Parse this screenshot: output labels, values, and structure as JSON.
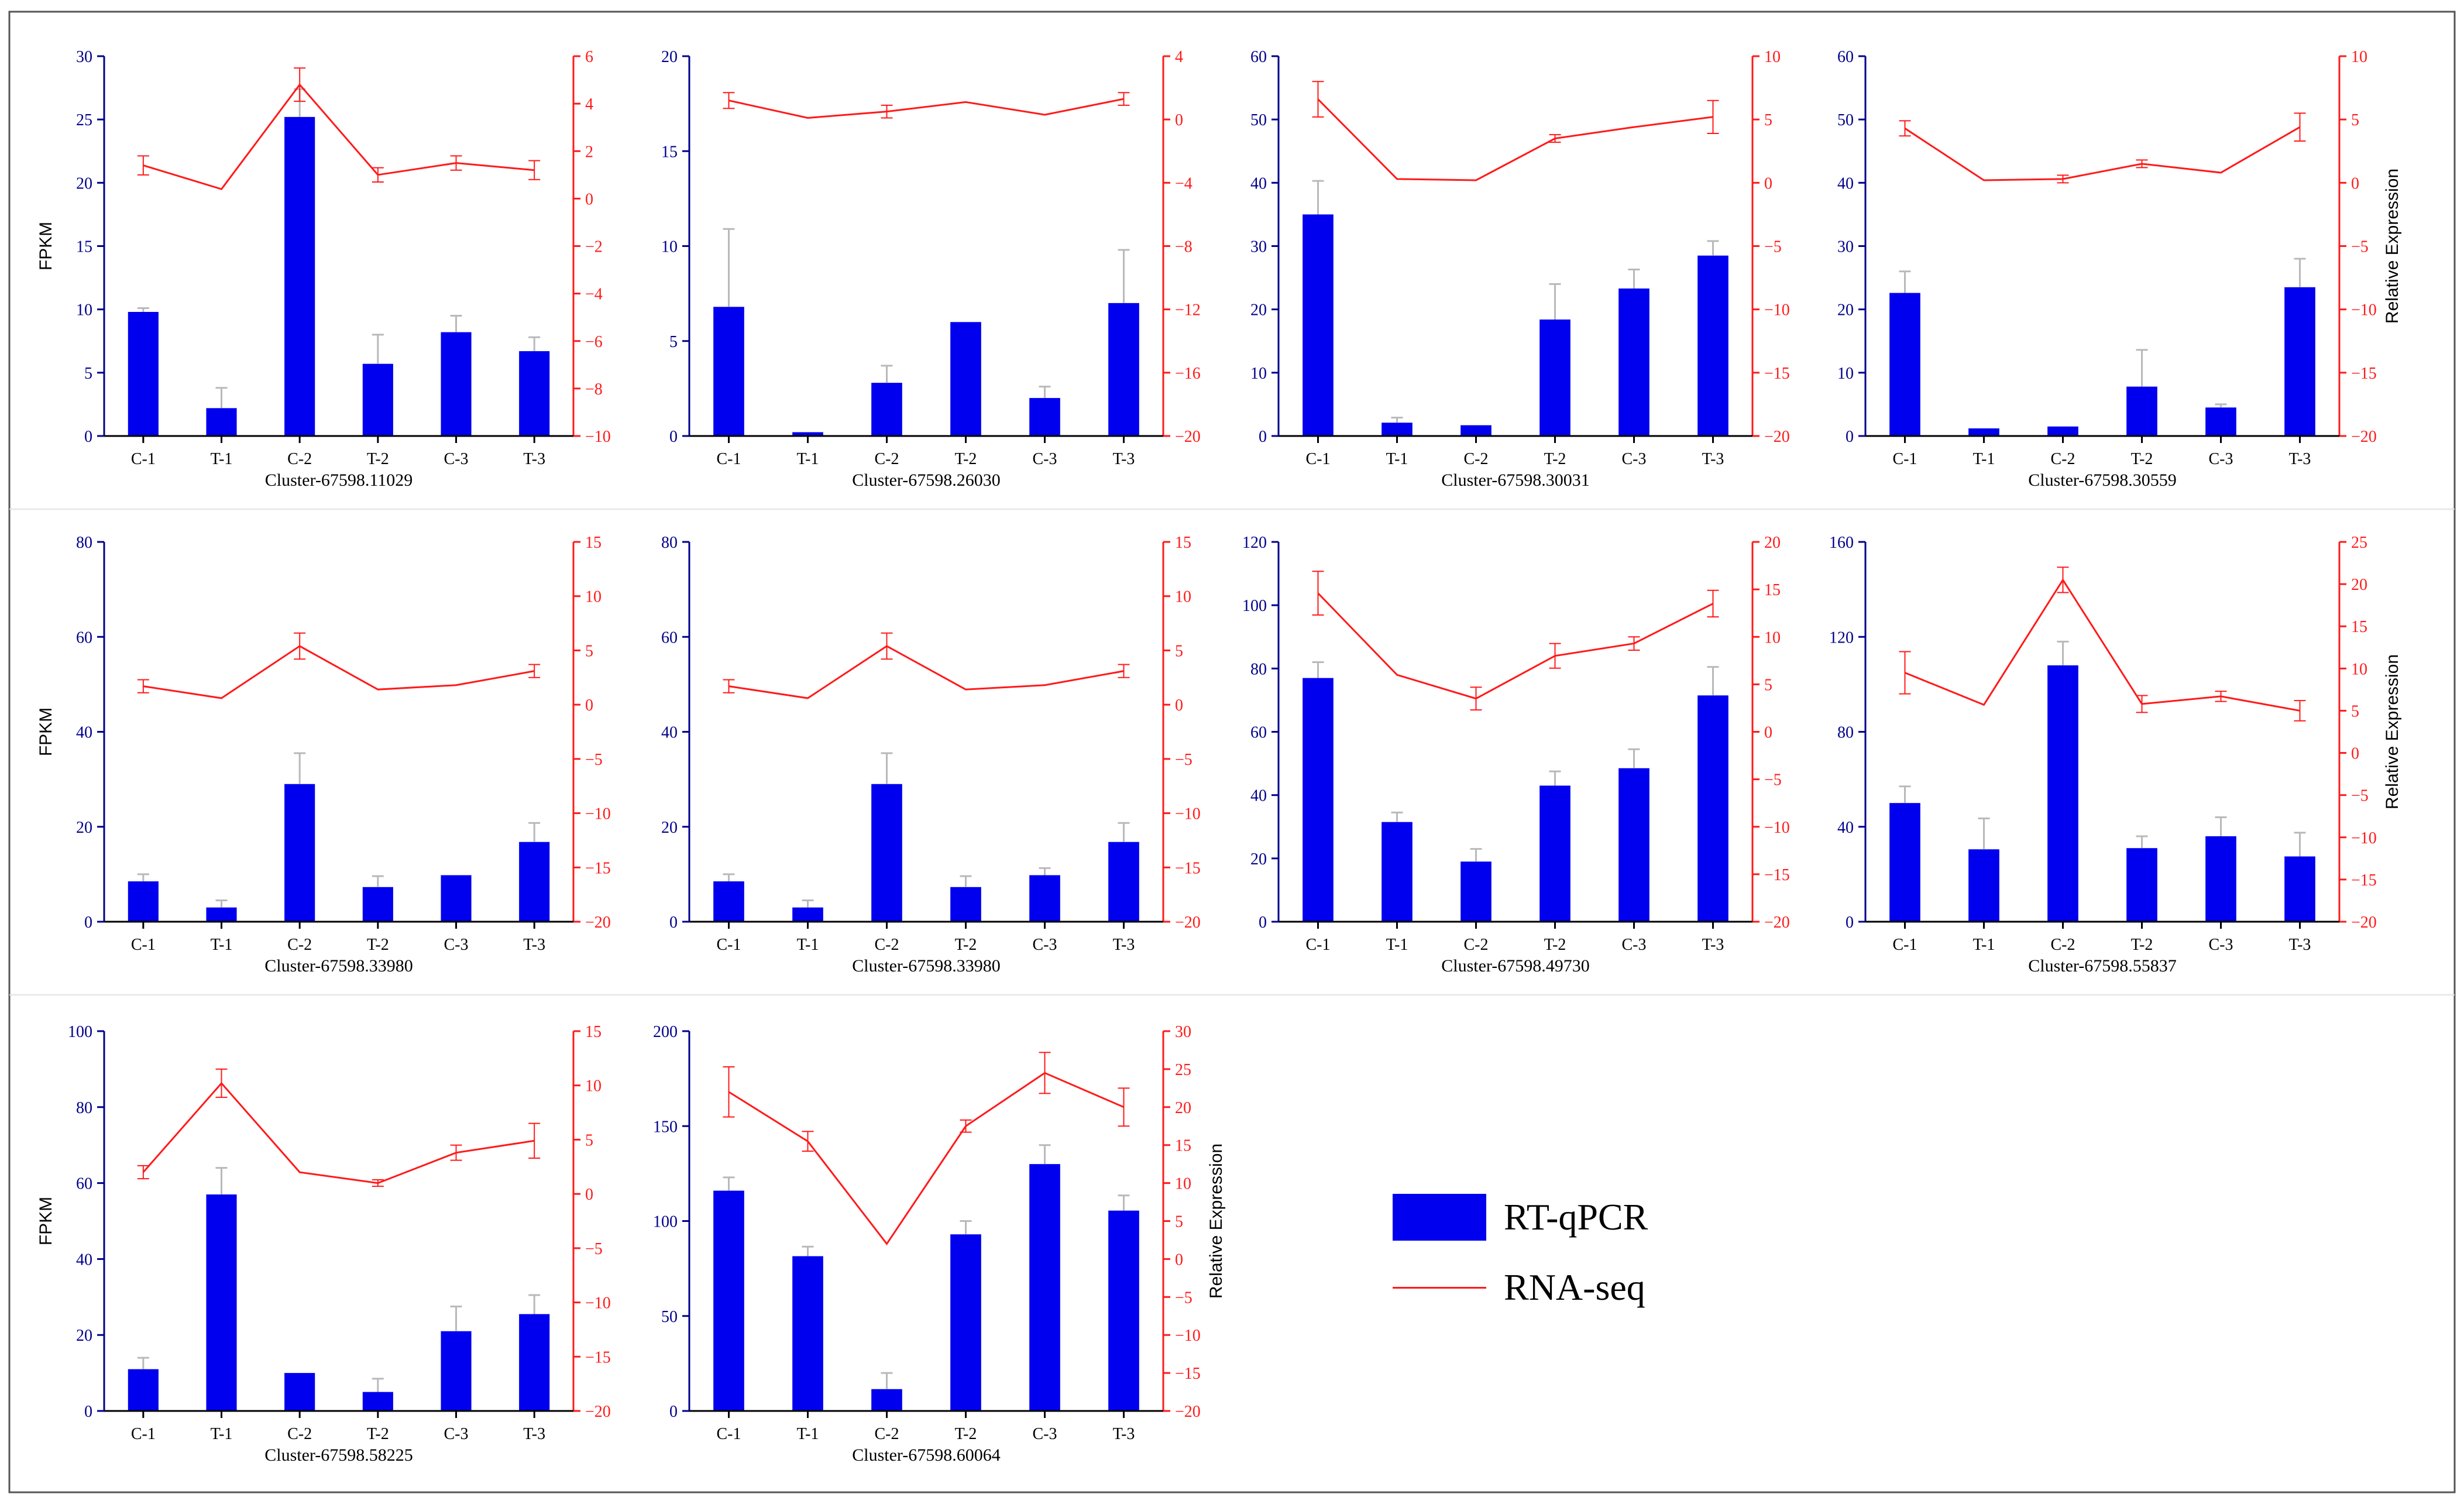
{
  "colors": {
    "bar": "#0000ee",
    "line": "#ff1a1a",
    "left_axis": "#00008b",
    "right_axis": "#ff1a1a"
  },
  "legend": {
    "bar_label": "RT-qPCR",
    "line_label": "RNA-seq"
  },
  "chart_data": [
    {
      "type": "bar+line",
      "title": "Cluster-67598.11029",
      "categories": [
        "C-1",
        "T-1",
        "C-2",
        "T-2",
        "C-3",
        "T-3"
      ],
      "ylabel": "FPKM",
      "y2label": "",
      "ylim": [
        0,
        30
      ],
      "yticks": [
        0,
        5,
        10,
        15,
        20,
        25,
        30
      ],
      "y2lim": [
        -10,
        6
      ],
      "y2ticks": [
        -10,
        -8,
        -6,
        -4,
        -2,
        0,
        2,
        4,
        6
      ],
      "series": [
        {
          "name": "RT-qPCR",
          "kind": "bar",
          "axis": "left",
          "values": [
            9.8,
            2.2,
            25.2,
            5.7,
            8.2,
            6.7
          ],
          "errors": [
            0.3,
            1.6,
            2.2,
            2.3,
            1.3,
            1.1
          ]
        },
        {
          "name": "RNA-seq",
          "kind": "line",
          "axis": "right",
          "values": [
            1.4,
            0.4,
            4.8,
            1.0,
            1.5,
            1.2
          ],
          "errors": [
            0.4,
            0,
            0.7,
            0.3,
            0.3,
            0.4
          ]
        }
      ]
    },
    {
      "type": "bar+line",
      "title": "Cluster-67598.26030",
      "categories": [
        "C-1",
        "T-1",
        "C-2",
        "T-2",
        "C-3",
        "T-3"
      ],
      "ylabel": "",
      "y2label": "",
      "ylim": [
        0,
        20
      ],
      "yticks": [
        0,
        5,
        10,
        15,
        20
      ],
      "y2lim": [
        -20,
        4
      ],
      "y2ticks": [
        -20,
        -16,
        -12,
        -8,
        -4,
        0,
        4
      ],
      "series": [
        {
          "name": "RT-qPCR",
          "kind": "bar",
          "axis": "left",
          "values": [
            6.8,
            0.2,
            2.8,
            6.0,
            2.0,
            7.0
          ],
          "errors": [
            4.1,
            0,
            0.9,
            0,
            0.6,
            2.8
          ]
        },
        {
          "name": "RNA-seq",
          "kind": "line",
          "axis": "right",
          "values": [
            1.2,
            0.1,
            0.5,
            1.1,
            0.3,
            1.3
          ],
          "errors": [
            0.5,
            0,
            0.4,
            0,
            0,
            0.4
          ]
        }
      ]
    },
    {
      "type": "bar+line",
      "title": "Cluster-67598.30031",
      "categories": [
        "C-1",
        "T-1",
        "C-2",
        "T-2",
        "C-3",
        "T-3"
      ],
      "ylabel": "",
      "y2label": "",
      "ylim": [
        0,
        60
      ],
      "yticks": [
        0,
        10,
        20,
        30,
        40,
        50,
        60
      ],
      "y2lim": [
        -20,
        10
      ],
      "y2ticks": [
        -20,
        -15,
        -10,
        -5,
        0,
        5,
        10
      ],
      "series": [
        {
          "name": "RT-qPCR",
          "kind": "bar",
          "axis": "left",
          "values": [
            35,
            2.1,
            1.7,
            18.4,
            23.3,
            28.5
          ],
          "errors": [
            5.3,
            0.8,
            0,
            5.6,
            3.0,
            2.3
          ]
        },
        {
          "name": "RNA-seq",
          "kind": "line",
          "axis": "right",
          "values": [
            6.6,
            0.3,
            0.2,
            3.5,
            4.4,
            5.2
          ],
          "errors": [
            1.4,
            0,
            0,
            0.3,
            0,
            1.3
          ]
        }
      ]
    },
    {
      "type": "bar+line",
      "title": "Cluster-67598.30559",
      "categories": [
        "C-1",
        "T-1",
        "C-2",
        "T-2",
        "C-3",
        "T-3"
      ],
      "ylabel": "",
      "y2label": "Relative Expression",
      "ylim": [
        0,
        60
      ],
      "yticks": [
        0,
        10,
        20,
        30,
        40,
        50,
        60
      ],
      "y2lim": [
        -20,
        10
      ],
      "y2ticks": [
        -20,
        -15,
        -10,
        -5,
        0,
        5,
        10
      ],
      "series": [
        {
          "name": "RT-qPCR",
          "kind": "bar",
          "axis": "left",
          "values": [
            22.6,
            1.2,
            1.5,
            7.8,
            4.5,
            23.5
          ],
          "errors": [
            3.4,
            0,
            0,
            5.8,
            0.5,
            4.5
          ]
        },
        {
          "name": "RNA-seq",
          "kind": "line",
          "axis": "right",
          "values": [
            4.3,
            0.2,
            0.3,
            1.5,
            0.8,
            4.4
          ],
          "errors": [
            0.6,
            0,
            0.3,
            0.3,
            0,
            1.1
          ]
        }
      ]
    },
    {
      "type": "bar+line",
      "title": "Cluster-67598.33980",
      "categories": [
        "C-1",
        "T-1",
        "C-2",
        "T-2",
        "C-3",
        "T-3"
      ],
      "ylabel": "FPKM",
      "y2label": "",
      "ylim": [
        0,
        80
      ],
      "yticks": [
        0,
        20,
        40,
        60,
        80
      ],
      "y2lim": [
        -20,
        15
      ],
      "y2ticks": [
        -20,
        -15,
        -10,
        -5,
        0,
        5,
        10,
        15
      ],
      "series": [
        {
          "name": "RT-qPCR",
          "kind": "bar",
          "axis": "left",
          "values": [
            8.5,
            3.0,
            29.0,
            7.3,
            9.8,
            16.8
          ],
          "errors": [
            1.5,
            1.5,
            6.5,
            2.3,
            0,
            4.0
          ]
        },
        {
          "name": "RNA-seq",
          "kind": "line",
          "axis": "right",
          "values": [
            1.7,
            0.6,
            5.4,
            1.4,
            1.8,
            3.1
          ],
          "errors": [
            0.6,
            0,
            1.2,
            0,
            0,
            0.6
          ]
        }
      ]
    },
    {
      "type": "bar+line",
      "title": "Cluster-67598.33980",
      "categories": [
        "C-1",
        "T-1",
        "C-2",
        "T-2",
        "C-3",
        "T-3"
      ],
      "ylabel": "",
      "y2label": "",
      "ylim": [
        0,
        80
      ],
      "yticks": [
        0,
        20,
        40,
        60,
        80
      ],
      "y2lim": [
        -20,
        15
      ],
      "y2ticks": [
        -20,
        -15,
        -10,
        -5,
        0,
        5,
        10,
        15
      ],
      "series": [
        {
          "name": "RT-qPCR",
          "kind": "bar",
          "axis": "left",
          "values": [
            8.5,
            3.0,
            29.0,
            7.3,
            9.8,
            16.8
          ],
          "errors": [
            1.5,
            1.5,
            6.5,
            2.3,
            1.5,
            4.0
          ]
        },
        {
          "name": "RNA-seq",
          "kind": "line",
          "axis": "right",
          "values": [
            1.7,
            0.6,
            5.4,
            1.4,
            1.8,
            3.1
          ],
          "errors": [
            0.6,
            0,
            1.2,
            0,
            0,
            0.6
          ]
        }
      ]
    },
    {
      "type": "bar+line",
      "title": "Cluster-67598.49730",
      "categories": [
        "C-1",
        "T-1",
        "C-2",
        "T-2",
        "C-3",
        "T-3"
      ],
      "ylabel": "",
      "y2label": "",
      "ylim": [
        0,
        120
      ],
      "yticks": [
        0,
        20,
        40,
        60,
        80,
        100,
        120
      ],
      "y2lim": [
        -20,
        20
      ],
      "y2ticks": [
        -20,
        -15,
        -10,
        -5,
        0,
        5,
        10,
        15,
        20
      ],
      "series": [
        {
          "name": "RT-qPCR",
          "kind": "bar",
          "axis": "left",
          "values": [
            77,
            31.5,
            19,
            43,
            48.5,
            71.5
          ],
          "errors": [
            5,
            3,
            4,
            4.5,
            6,
            9
          ]
        },
        {
          "name": "RNA-seq",
          "kind": "line",
          "axis": "right",
          "values": [
            14.6,
            6.0,
            3.5,
            8.0,
            9.3,
            13.5
          ],
          "errors": [
            2.3,
            0,
            1.2,
            1.3,
            0.7,
            1.4
          ]
        }
      ]
    },
    {
      "type": "bar+line",
      "title": "Cluster-67598.55837",
      "categories": [
        "C-1",
        "T-1",
        "C-2",
        "T-2",
        "C-3",
        "T-3"
      ],
      "ylabel": "",
      "y2label": "Relative Expression",
      "ylim": [
        0,
        160
      ],
      "yticks": [
        0,
        40,
        80,
        120,
        160
      ],
      "y2lim": [
        -20,
        25
      ],
      "y2ticks": [
        -20,
        -15,
        -10,
        -5,
        0,
        5,
        10,
        15,
        20,
        25
      ],
      "series": [
        {
          "name": "RT-qPCR",
          "kind": "bar",
          "axis": "left",
          "values": [
            50,
            30.5,
            108,
            31,
            36,
            27.5
          ],
          "errors": [
            7,
            13,
            10,
            5,
            8,
            10
          ]
        },
        {
          "name": "RNA-seq",
          "kind": "line",
          "axis": "right",
          "values": [
            9.5,
            5.7,
            20.5,
            5.8,
            6.7,
            5.0
          ],
          "errors": [
            2.5,
            0,
            1.5,
            1.0,
            0.6,
            1.2
          ]
        }
      ]
    },
    {
      "type": "bar+line",
      "title": "Cluster-67598.58225",
      "categories": [
        "C-1",
        "T-1",
        "C-2",
        "T-2",
        "C-3",
        "T-3"
      ],
      "ylabel": "FPKM",
      "y2label": "",
      "ylim": [
        0,
        100
      ],
      "yticks": [
        0,
        20,
        40,
        60,
        80,
        100
      ],
      "y2lim": [
        -20,
        15
      ],
      "y2ticks": [
        -20,
        -15,
        -10,
        -5,
        0,
        5,
        10,
        15
      ],
      "series": [
        {
          "name": "RT-qPCR",
          "kind": "bar",
          "axis": "left",
          "values": [
            11,
            57,
            10,
            5,
            21,
            25.5
          ],
          "errors": [
            3,
            7,
            0,
            3.5,
            6.5,
            5
          ]
        },
        {
          "name": "RNA-seq",
          "kind": "line",
          "axis": "right",
          "values": [
            2.0,
            10.2,
            2.0,
            1.0,
            3.8,
            4.9
          ],
          "errors": [
            0.6,
            1.3,
            0,
            0.3,
            0.7,
            1.6
          ]
        }
      ]
    },
    {
      "type": "bar+line",
      "title": "Cluster-67598.60064",
      "categories": [
        "C-1",
        "T-1",
        "C-2",
        "T-2",
        "C-3",
        "T-3"
      ],
      "ylabel": "",
      "y2label": "Relative Expression",
      "ylim": [
        0,
        200
      ],
      "yticks": [
        0,
        50,
        100,
        150,
        200
      ],
      "y2lim": [
        -20,
        30
      ],
      "y2ticks": [
        -20,
        -15,
        -10,
        -5,
        0,
        5,
        10,
        15,
        20,
        25,
        30
      ],
      "series": [
        {
          "name": "RT-qPCR",
          "kind": "bar",
          "axis": "left",
          "values": [
            116,
            81.5,
            11.5,
            93,
            130,
            105.5
          ],
          "errors": [
            7,
            5,
            8.5,
            7,
            10,
            8
          ]
        },
        {
          "name": "RNA-seq",
          "kind": "line",
          "axis": "right",
          "values": [
            22.0,
            15.5,
            2.0,
            17.5,
            24.5,
            20.0
          ],
          "errors": [
            3.3,
            1.3,
            0,
            0.8,
            2.7,
            2.5
          ]
        }
      ]
    }
  ]
}
